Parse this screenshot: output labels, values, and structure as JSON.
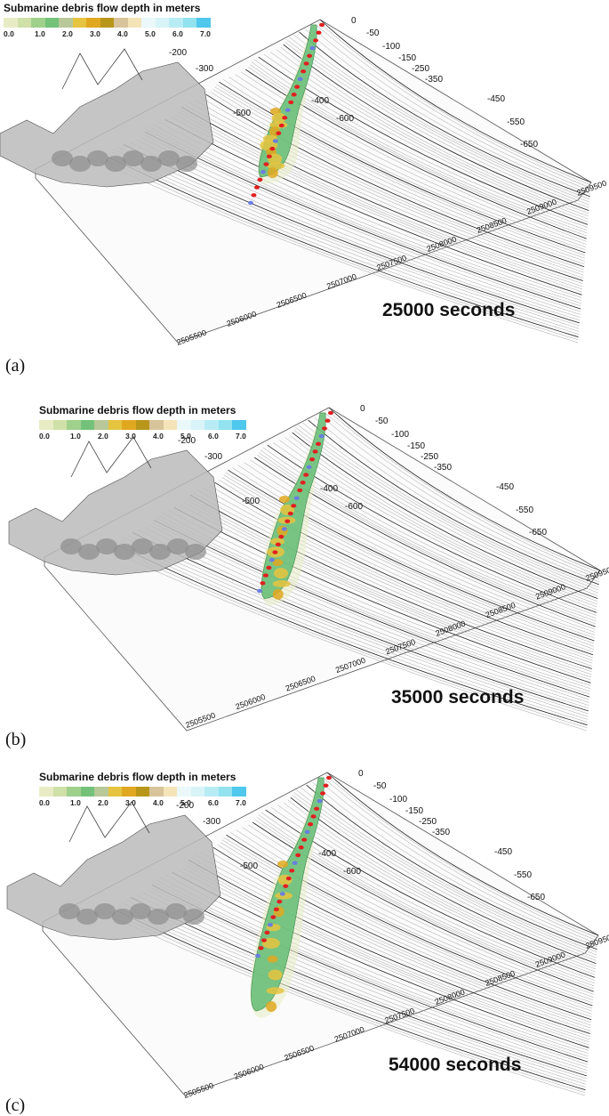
{
  "legend": {
    "title": "Submarine debris flow depth in meters",
    "ticks": [
      "0.0",
      "1.0",
      "2.0",
      "3.0",
      "4.0",
      "5.0",
      "6.0",
      "7.0"
    ],
    "colors": [
      "#e8ecc4",
      "#cfe0a8",
      "#9fd08c",
      "#74c27a",
      "#b8c898",
      "#e6c440",
      "#e0a820",
      "#b8961a",
      "#d8c49a",
      "#f4e4b8",
      "#eaf8fa",
      "#d8f4f8",
      "#b8ecf4",
      "#92e2f0",
      "#4ec8ec"
    ]
  },
  "contour_labels": [
    "0",
    "-50",
    "-100",
    "-150",
    "-200",
    "-250",
    "-300",
    "-350",
    "-400",
    "-450",
    "-500",
    "-550",
    "-600",
    "-650"
  ],
  "axis_labels": {
    "front": [
      "2505500",
      "2506000",
      "2506500",
      "2507000",
      "2507500",
      "2508000",
      "2508500",
      "2509000",
      "2509500"
    ]
  },
  "panels": [
    {
      "letter": "(a)",
      "time": "25000 seconds",
      "flow_extent": 0.35
    },
    {
      "letter": "(b)",
      "time": "35000 seconds",
      "flow_extent": 0.62
    },
    {
      "letter": "(c)",
      "time": "54000 seconds",
      "flow_extent": 1.0
    }
  ]
}
